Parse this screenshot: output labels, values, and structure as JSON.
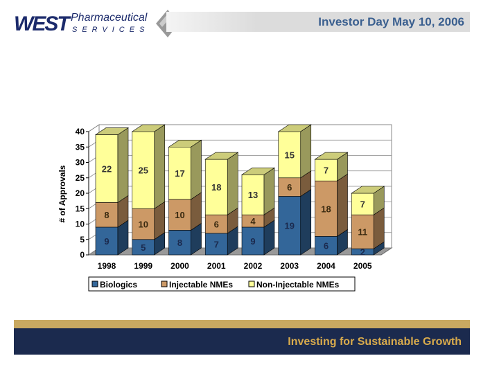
{
  "header": {
    "title": "Investor Day May 10, 2006",
    "logo_text": "WEST Pharmaceutical SERVICES"
  },
  "footer": {
    "tagline": "Investing for Sustainable Growth"
  },
  "chart_data": {
    "type": "bar",
    "stacked": true,
    "three_d": true,
    "categories": [
      "1998",
      "1999",
      "2000",
      "2001",
      "2002",
      "2003",
      "2004",
      "2005"
    ],
    "series": [
      {
        "name": "Biologics",
        "values": [
          9,
          5,
          8,
          7,
          9,
          19,
          6,
          2
        ],
        "color": "#336699"
      },
      {
        "name": "Injectable NMEs",
        "values": [
          8,
          10,
          10,
          6,
          4,
          6,
          18,
          11
        ],
        "color": "#cc9966"
      },
      {
        "name": "Non-Injectable NMEs",
        "values": [
          22,
          25,
          17,
          18,
          13,
          15,
          7,
          7
        ],
        "color": "#ffff99"
      }
    ],
    "ylabel": "# of Approvals",
    "xlabel": "",
    "ylim": [
      0,
      40
    ],
    "yticks": [
      0,
      5,
      10,
      15,
      20,
      25,
      30,
      35,
      40
    ],
    "grid": true,
    "legend": "bottom"
  }
}
